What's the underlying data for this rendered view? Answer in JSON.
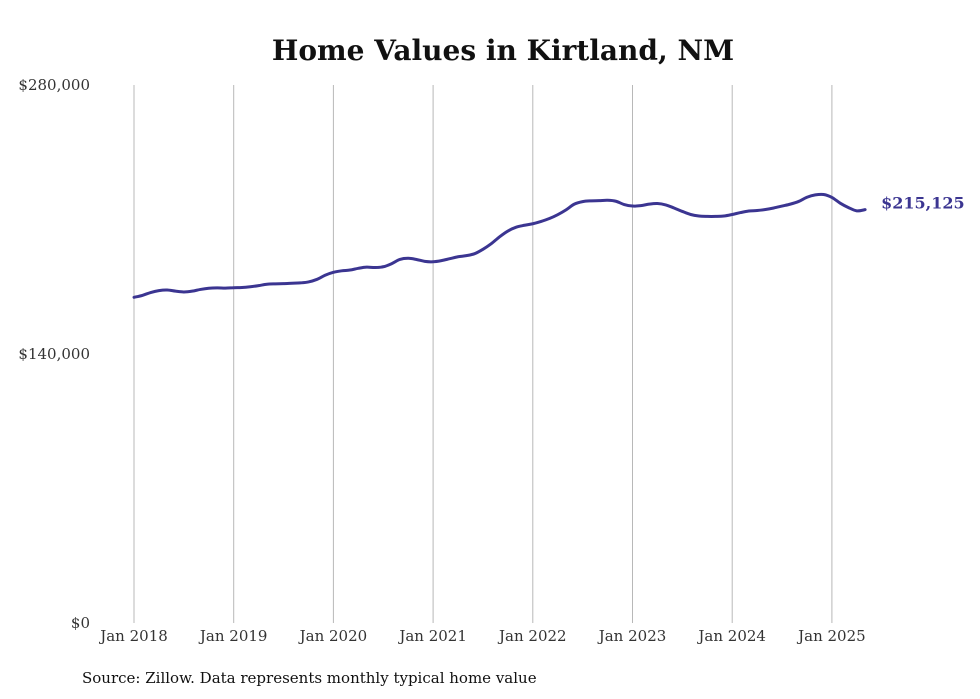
{
  "chart_data": {
    "type": "line",
    "title": "Home Values in Kirtland, NM",
    "xlabel": "",
    "ylabel": "",
    "ylim": [
      0,
      280000
    ],
    "y_ticks": [
      0,
      140000,
      280000
    ],
    "y_tick_labels": [
      "$0",
      "$140,000",
      "$280,000"
    ],
    "x_ticks": [
      "2018-01",
      "2019-01",
      "2020-01",
      "2021-01",
      "2022-01",
      "2023-01",
      "2024-01",
      "2025-01"
    ],
    "x_tick_labels": [
      "Jan 2018",
      "Jan 2019",
      "Jan 2020",
      "Jan 2021",
      "Jan 2022",
      "Jan 2023",
      "Jan 2024",
      "Jan 2025"
    ],
    "x_range": [
      "2018-01",
      "2025-06"
    ],
    "vertical_grid": true,
    "horizontal_grid": false,
    "line_color": "#3b3591",
    "end_label": "$215,125",
    "series": [
      {
        "x": [
          "2018-01",
          "2018-02",
          "2018-03",
          "2018-04",
          "2018-05",
          "2018-06",
          "2018-07",
          "2018-08",
          "2018-09",
          "2018-10",
          "2018-11",
          "2018-12",
          "2019-01",
          "2019-02",
          "2019-03",
          "2019-04",
          "2019-05",
          "2019-06",
          "2019-07",
          "2019-08",
          "2019-09",
          "2019-10",
          "2019-11",
          "2019-12",
          "2020-01",
          "2020-02",
          "2020-03",
          "2020-04",
          "2020-05",
          "2020-06",
          "2020-07",
          "2020-08",
          "2020-09",
          "2020-10",
          "2020-11",
          "2020-12",
          "2021-01",
          "2021-02",
          "2021-03",
          "2021-04",
          "2021-05",
          "2021-06",
          "2021-07",
          "2021-08",
          "2021-09",
          "2021-10",
          "2021-11",
          "2021-12",
          "2022-01",
          "2022-02",
          "2022-03",
          "2022-04",
          "2022-05",
          "2022-06",
          "2022-07",
          "2022-08",
          "2022-09",
          "2022-10",
          "2022-11",
          "2022-12",
          "2023-01",
          "2023-02",
          "2023-03",
          "2023-04",
          "2023-05",
          "2023-06",
          "2023-07",
          "2023-08",
          "2023-09",
          "2023-10",
          "2023-11",
          "2023-12",
          "2024-01",
          "2024-02",
          "2024-03",
          "2024-04",
          "2024-05",
          "2024-06",
          "2024-07",
          "2024-08",
          "2024-09",
          "2024-10",
          "2024-11",
          "2024-12",
          "2025-01",
          "2025-02",
          "2025-03",
          "2025-04",
          "2025-05",
          "2025-06"
        ],
        "values": [
          169500,
          170500,
          172000,
          173000,
          173300,
          172700,
          172300,
          172700,
          173600,
          174200,
          174400,
          174300,
          174500,
          174600,
          175000,
          175600,
          176300,
          176500,
          176600,
          176800,
          177000,
          177500,
          178800,
          181000,
          182500,
          183300,
          183700,
          184600,
          185200,
          185000,
          185400,
          187000,
          189200,
          189800,
          189200,
          188200,
          188000,
          188600,
          189600,
          190600,
          191200,
          192200,
          194500,
          197400,
          201000,
          204000,
          206000,
          207000,
          207800,
          209000,
          210500,
          212500,
          215000,
          218000,
          219300,
          219700,
          219800,
          220000,
          219500,
          217800,
          217000,
          217200,
          218000,
          218300,
          217600,
          216000,
          214200,
          212600,
          211800,
          211600,
          211600,
          211800,
          212600,
          213600,
          214400,
          214700,
          215200,
          216000,
          217000,
          218000,
          219400,
          221600,
          222800,
          223000,
          221500,
          218500,
          216200,
          214500,
          215125,
          215125
        ]
      }
    ]
  },
  "footer": {
    "source": "Source: Zillow. Data represents monthly typical home value"
  }
}
